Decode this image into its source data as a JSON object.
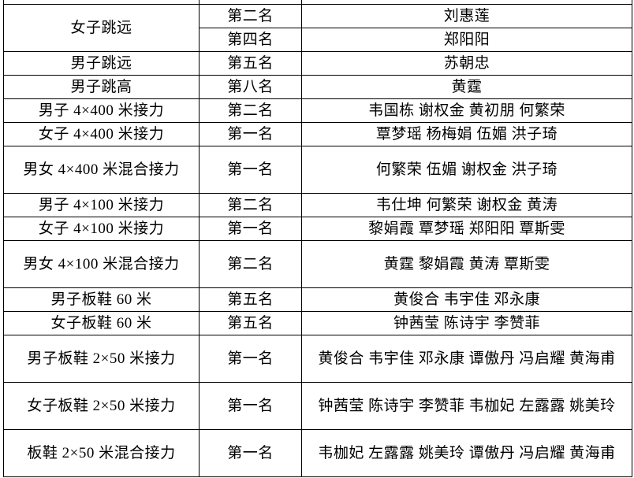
{
  "table": {
    "rows": [
      {
        "event": "女子跳远",
        "rank": "第二名",
        "athletes": "刘惠莲",
        "event_rowspan": 2
      },
      {
        "event": null,
        "rank": "第四名",
        "athletes": "郑阳阳"
      },
      {
        "event": "男子跳远",
        "rank": "第五名",
        "athletes": "苏朝忠"
      },
      {
        "event": "男子跳高",
        "rank": "第八名",
        "athletes": "黄霆"
      },
      {
        "event": "男子 4×400 米接力",
        "rank": "第二名",
        "athletes": "韦国栋  谢权金  黄初朋  何繁荣"
      },
      {
        "event": "女子 4×400 米接力",
        "rank": "第一名",
        "athletes": "覃梦瑶  杨梅娟  伍媚  洪子琦"
      },
      {
        "event": "男女 4×400 米混合接力",
        "rank": "第一名",
        "athletes": "何繁荣  伍媚  谢权金  洪子琦",
        "tall": true
      },
      {
        "event": "男子 4×100 米接力",
        "rank": "第二名",
        "athletes": "韦仕坤  何繁荣  谢权金  黄涛"
      },
      {
        "event": "女子 4×100 米接力",
        "rank": "第一名",
        "athletes": "黎娟霞  覃梦瑶  郑阳阳  覃斯雯"
      },
      {
        "event": "男女 4×100 米混合接力",
        "rank": "第二名",
        "athletes": "黄霆  黎娟霞  黄涛  覃斯雯",
        "tall": true
      },
      {
        "event": "男子板鞋 60 米",
        "rank": "第五名",
        "athletes": "黄俊合  韦宇佳  邓永康"
      },
      {
        "event": "女子板鞋 60 米",
        "rank": "第五名",
        "athletes": "钟茜莹  陈诗宇  李赞菲"
      },
      {
        "event": "男子板鞋 2×50 米接力",
        "rank": "第一名",
        "athletes": "黄俊合  韦宇佳  邓永康  谭傲丹  冯启耀  黄海甫",
        "tall": true
      },
      {
        "event": "女子板鞋 2×50 米接力",
        "rank": "第一名",
        "athletes": "钟茜莹  陈诗宇  李赞菲  韦枷妃  左露露  姚美玲",
        "tall": true
      },
      {
        "event": "板鞋 2×50 米混合接力",
        "rank": "第一名",
        "athletes": "韦枷妃  左露露  姚美玲  谭傲丹  冯启耀  黄海甫",
        "tall": true
      }
    ]
  }
}
